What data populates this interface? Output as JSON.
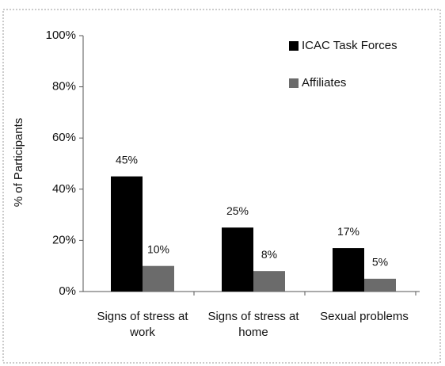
{
  "chart_data": {
    "type": "bar",
    "y_label": "% of Participants",
    "categories": [
      "Signs of stress at work",
      "Signs of stress at home",
      "Sexual problems"
    ],
    "series": [
      {
        "name": "ICAC Task Forces",
        "color": "#000000",
        "values": [
          45,
          25,
          17
        ],
        "value_labels": [
          "45%",
          "25%",
          "17%"
        ]
      },
      {
        "name": "Affiliates",
        "color": "#6b6b6b",
        "values": [
          10,
          8,
          5
        ],
        "value_labels": [
          "10%",
          "8%",
          "5%"
        ]
      }
    ],
    "ylim": [
      0,
      100
    ],
    "yticks": [
      {
        "value": 0,
        "label": "0%"
      },
      {
        "value": 20,
        "label": "20%"
      },
      {
        "value": 40,
        "label": "40%"
      },
      {
        "value": 60,
        "label": "60%"
      },
      {
        "value": 80,
        "label": "80%"
      },
      {
        "value": 100,
        "label": "100%"
      }
    ],
    "legend": "top-right"
  }
}
